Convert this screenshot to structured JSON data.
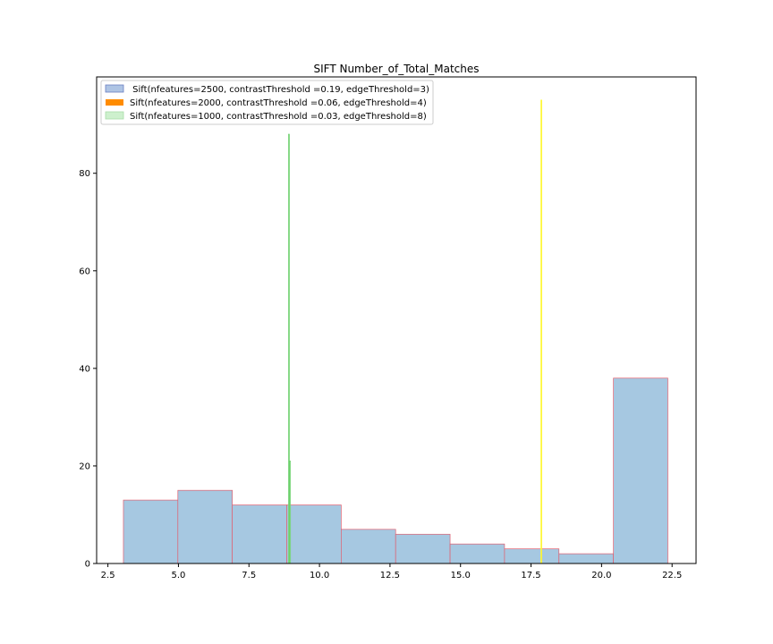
{
  "chart_data": {
    "type": "bar",
    "title": "SIFT Number_of_Total_Matches",
    "xlabel": "",
    "ylabel": "",
    "xlim": [
      2.1,
      23.35
    ],
    "ylim": [
      0,
      99.75
    ],
    "grid": false,
    "legend_position": "top-left",
    "x_ticks": [
      2.5,
      5.0,
      7.5,
      10.0,
      12.5,
      15.0,
      17.5,
      20.0,
      22.5
    ],
    "x_tick_labels": [
      "2.5",
      "5.0",
      "7.5",
      "10.0",
      "12.5",
      "15.0",
      "17.5",
      "20.0",
      "22.5"
    ],
    "y_ticks": [
      0,
      20,
      40,
      60,
      80
    ],
    "y_tick_labels": [
      "0",
      "20",
      "40",
      "60",
      "80"
    ],
    "series": [
      {
        "name": " Sift(nfeatures=2500, contrastThreshold =0.19, edgeThreshold=3)",
        "color": "#a6c8e1",
        "edge_color": "#e06070",
        "bins": [
          [
            3.05,
            4.98,
            13
          ],
          [
            4.98,
            6.91,
            15
          ],
          [
            6.91,
            8.84,
            12
          ],
          [
            8.84,
            10.77,
            12
          ],
          [
            10.77,
            12.7,
            7
          ],
          [
            12.7,
            14.63,
            6
          ],
          [
            14.63,
            16.56,
            4
          ],
          [
            16.56,
            18.49,
            3
          ],
          [
            18.49,
            20.42,
            2
          ],
          [
            20.42,
            22.35,
            38
          ]
        ]
      },
      {
        "name": "Sift(nfeatures=2000, contrastThreshold =0.06, edgeThreshold=4)",
        "color": "#ff8c00",
        "line_color": "#ffff33",
        "bins": [
          [
            17.85,
            17.88,
            95
          ]
        ]
      },
      {
        "name": "Sift(nfeatures=1000, contrastThreshold =0.03, edgeThreshold=8)",
        "color": "#cdf0cd",
        "line_color": "#6dd16d",
        "bins": [
          [
            8.9,
            8.93,
            88
          ],
          [
            8.94,
            8.97,
            21
          ]
        ]
      }
    ]
  }
}
